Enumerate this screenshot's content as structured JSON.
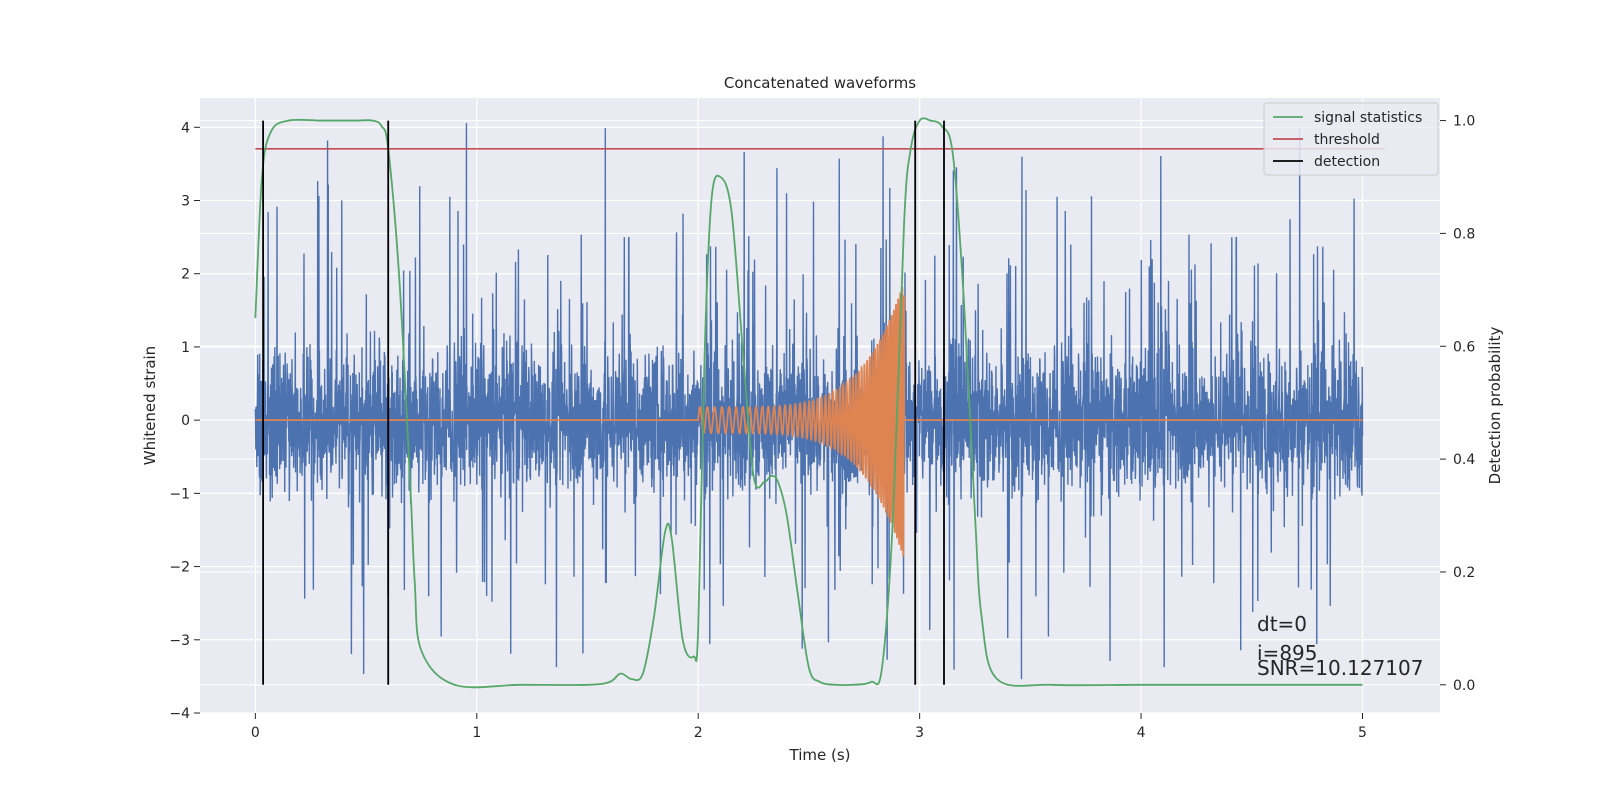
{
  "chart_data": {
    "type": "line",
    "title": "Concatenated waveforms",
    "xlabel": "Time (s)",
    "ylabel": "Whitened strain",
    "ylabel_right": "Detection probability",
    "xlim": [
      -0.25,
      5.35
    ],
    "ylim": [
      -4.0,
      4.4
    ],
    "ylim_right": [
      -0.05,
      1.04
    ],
    "xticks": [
      0,
      1,
      2,
      3,
      4,
      5
    ],
    "yticks": [
      -4,
      -3,
      -2,
      -1,
      0,
      1,
      2,
      3,
      4
    ],
    "yticks_right": [
      0.0,
      0.2,
      0.4,
      0.6,
      0.8,
      1.0
    ],
    "ytick_labels_right": [
      "0.0",
      "0.2",
      "0.4",
      "0.6",
      "0.8",
      "1.0"
    ],
    "grid": true,
    "legend_position": "top-right",
    "colors": {
      "background": "#eaeaf2",
      "strain": "#4c72b0",
      "injection": "#dd8452",
      "signal_statistics": "#55a868",
      "threshold": "#c44e52",
      "detection": "#000000"
    },
    "legend": [
      "signal statistics",
      "threshold",
      "detection"
    ],
    "strain": {
      "t_start": 0.0,
      "t_end": 5.0,
      "envelope": 1.0,
      "peak_max": 4.1,
      "min": -3.6
    },
    "injection": {
      "t_start": 2.0,
      "t_end": 2.93,
      "amp_start": 0.18,
      "amp_end": 1.9,
      "freq_start_hz": 30,
      "freq_end_hz": 110
    },
    "signal_statistics": {
      "x": [
        0.0,
        0.03,
        0.07,
        0.15,
        0.3,
        0.45,
        0.53,
        0.57,
        0.6,
        0.65,
        0.7,
        0.72,
        0.75,
        0.9,
        1.2,
        1.5,
        1.6,
        1.65,
        1.7,
        1.75,
        1.8,
        1.85,
        1.88,
        1.93,
        1.98,
        2.0,
        2.03,
        2.06,
        2.1,
        2.15,
        2.2,
        2.25,
        2.3,
        2.33,
        2.36,
        2.4,
        2.45,
        2.5,
        2.55,
        2.62,
        2.7,
        2.78,
        2.83,
        2.88,
        2.93,
        2.96,
        3.0,
        3.05,
        3.1,
        3.15,
        3.2,
        3.25,
        3.28,
        3.35,
        3.6,
        4.0,
        4.5,
        4.8,
        5.0
      ],
      "y": [
        0.65,
        0.9,
        0.98,
        1.0,
        1.0,
        1.0,
        1.0,
        0.99,
        0.95,
        0.72,
        0.35,
        0.18,
        0.06,
        0.0,
        0.0,
        0.0,
        0.005,
        0.02,
        0.01,
        0.02,
        0.12,
        0.27,
        0.26,
        0.08,
        0.05,
        0.1,
        0.6,
        0.86,
        0.9,
        0.84,
        0.6,
        0.37,
        0.36,
        0.37,
        0.36,
        0.3,
        0.16,
        0.03,
        0.005,
        0.0,
        0.0,
        0.005,
        0.03,
        0.3,
        0.82,
        0.95,
        1.0,
        1.0,
        0.99,
        0.94,
        0.68,
        0.3,
        0.12,
        0.01,
        0.0,
        0.0,
        0.0,
        0.0,
        0.0
      ]
    },
    "threshold": {
      "x": [
        0.0,
        5.1
      ],
      "y": [
        0.95,
        0.95
      ]
    },
    "detections": [
      0.035,
      0.6,
      2.98,
      3.11
    ],
    "detection_range": [
      0.0,
      1.0
    ],
    "annotations": [
      "dt=0",
      "i=895",
      "SNR=10.127107"
    ]
  }
}
